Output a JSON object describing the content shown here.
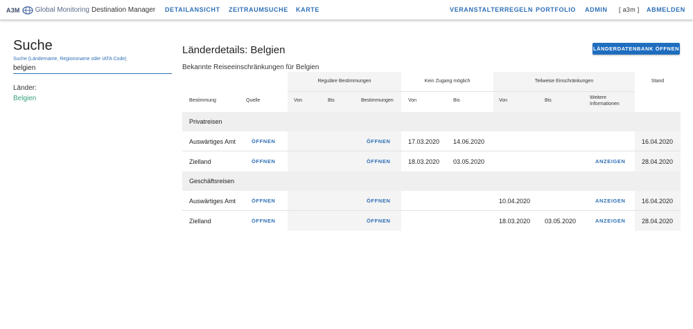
{
  "header": {
    "brand_a3m": "A3M",
    "brand_global": "Global Monitoring",
    "brand_app": "Destination Manager",
    "nav_left": [
      "DETAILANSICHT",
      "ZEITRAUMSUCHE",
      "KARTE"
    ],
    "nav_right": [
      "VERANSTALTERREGELN",
      "PORTFOLIO",
      "ADMIN"
    ],
    "user": "[ a3m ]",
    "logout": "ABMELDEN"
  },
  "search": {
    "title": "Suche",
    "label": "Suche (Ländername, Regionsname oder IATA Code)",
    "value": "belgien",
    "countries_label": "Länder:",
    "countries": [
      "Belgien"
    ]
  },
  "main": {
    "title": "Länderdetails: Belgien",
    "subtitle": "Bekannte Reiseeinschränkungen für Belgien",
    "open_db_button": "LÄNDERDATENBANK ÖFFNEN"
  },
  "table": {
    "group_headers": {
      "regulaer": "Reguläre Bestimmungen",
      "kein_zugang": "Kein Zugang möglich",
      "teilweise": "Teilweise Einschränkungen",
      "stand": "Stand"
    },
    "columns": {
      "bestimmung": "Bestimmung",
      "quelle": "Quelle",
      "von1": "Von",
      "bis1": "Bis",
      "bestimmungen": "Bestimmungen",
      "von2": "Von",
      "bis2": "Bis",
      "von3": "Von",
      "bis3": "Bis",
      "weitere": "Weitere Informationen"
    },
    "groups": [
      {
        "name": "Privatreisen",
        "rows": [
          {
            "bestimmung": "Auswärtiges Amt",
            "quelle": "ÖFFNEN",
            "von1": "",
            "bis1": "",
            "bestimmungen": "ÖFFNEN",
            "von2": "17.03.2020",
            "bis2": "14.06.2020",
            "von3": "",
            "bis3": "",
            "weitere": "",
            "stand": "16.04.2020"
          },
          {
            "bestimmung": "Zielland",
            "quelle": "ÖFFNEN",
            "von1": "",
            "bis1": "",
            "bestimmungen": "ÖFFNEN",
            "von2": "18.03.2020",
            "bis2": "03.05.2020",
            "von3": "",
            "bis3": "",
            "weitere": "ANZEIGEN",
            "stand": "28.04.2020"
          }
        ]
      },
      {
        "name": "Geschäftsreisen",
        "rows": [
          {
            "bestimmung": "Auswärtiges Amt",
            "quelle": "ÖFFNEN",
            "von1": "",
            "bis1": "",
            "bestimmungen": "ÖFFNEN",
            "von2": "",
            "bis2": "",
            "von3": "10.04.2020",
            "bis3": "",
            "weitere": "ANZEIGEN",
            "stand": "16.04.2020"
          },
          {
            "bestimmung": "Zielland",
            "quelle": "ÖFFNEN",
            "von1": "",
            "bis1": "",
            "bestimmungen": "ÖFFNEN",
            "von2": "",
            "bis2": "",
            "von3": "18.03.2020",
            "bis3": "03.05.2020",
            "weitere": "ANZEIGEN",
            "stand": "28.04.2020"
          }
        ]
      }
    ]
  }
}
